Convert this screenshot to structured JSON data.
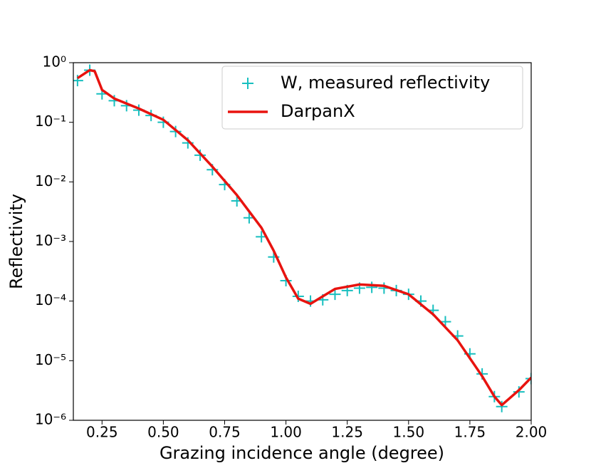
{
  "chart_data": {
    "type": "line",
    "xlabel": "Grazing incidence angle (degree)",
    "ylabel": "Reflectivity",
    "xlim": [
      0.133,
      2.0
    ],
    "xticks": [
      {
        "value": 0.25,
        "label": "0.25"
      },
      {
        "value": 0.5,
        "label": "0.50"
      },
      {
        "value": 0.75,
        "label": "0.75"
      },
      {
        "value": 1.0,
        "label": "1.00"
      },
      {
        "value": 1.25,
        "label": "1.25"
      },
      {
        "value": 1.5,
        "label": "1.50"
      },
      {
        "value": 1.75,
        "label": "1.75"
      },
      {
        "value": 2.0,
        "label": "2.00"
      }
    ],
    "ylim": [
      1e-06,
      1
    ],
    "yscale": "log",
    "yticks": [
      {
        "value": 1,
        "label": "10⁰"
      },
      {
        "value": 0.1,
        "label": "10⁻¹"
      },
      {
        "value": 0.01,
        "label": "10⁻²"
      },
      {
        "value": 0.001,
        "label": "10⁻³"
      },
      {
        "value": 0.0001,
        "label": "10⁻⁴"
      },
      {
        "value": 1e-05,
        "label": "10⁻⁵"
      },
      {
        "value": 1e-06,
        "label": "10⁻⁶"
      }
    ],
    "legend": "upper right",
    "series": [
      {
        "name": "W, measured reflectivity",
        "type": "scatter",
        "color": "#17bfbf",
        "x": [
          0.15,
          0.2,
          0.25,
          0.3,
          0.35,
          0.4,
          0.45,
          0.5,
          0.55,
          0.6,
          0.65,
          0.7,
          0.75,
          0.8,
          0.85,
          0.9,
          0.95,
          1.0,
          1.05,
          1.1,
          1.15,
          1.2,
          1.25,
          1.3,
          1.35,
          1.4,
          1.45,
          1.5,
          1.55,
          1.6,
          1.65,
          1.7,
          1.75,
          1.8,
          1.85,
          1.88,
          1.95,
          2.0
        ],
        "values": [
          0.5,
          0.75,
          0.3,
          0.23,
          0.19,
          0.16,
          0.13,
          0.1,
          0.07,
          0.045,
          0.028,
          0.016,
          0.009,
          0.0048,
          0.0025,
          0.0012,
          0.00055,
          0.00022,
          0.00012,
          0.0001,
          0.000105,
          0.00013,
          0.00015,
          0.000165,
          0.00017,
          0.000165,
          0.00015,
          0.00013,
          0.0001,
          7e-05,
          4.5e-05,
          2.6e-05,
          1.3e-05,
          6e-06,
          2.5e-06,
          1.7e-06,
          3e-06,
          5e-06
        ]
      },
      {
        "name": "DarpanX",
        "type": "line",
        "color": "#e8130f",
        "x": [
          0.15,
          0.2,
          0.22,
          0.25,
          0.3,
          0.4,
          0.5,
          0.6,
          0.7,
          0.8,
          0.9,
          0.95,
          1.0,
          1.05,
          1.1,
          1.15,
          1.2,
          1.3,
          1.4,
          1.5,
          1.6,
          1.7,
          1.8,
          1.85,
          1.88,
          1.95,
          2.0
        ],
        "values": [
          0.55,
          0.75,
          0.72,
          0.35,
          0.25,
          0.17,
          0.11,
          0.05,
          0.018,
          0.006,
          0.0017,
          0.0007,
          0.00025,
          0.00011,
          9e-05,
          0.00012,
          0.00016,
          0.00019,
          0.00018,
          0.00013,
          6e-05,
          2.2e-05,
          5.5e-06,
          2.5e-06,
          1.8e-06,
          3.2e-06,
          5.2e-06
        ]
      }
    ]
  }
}
